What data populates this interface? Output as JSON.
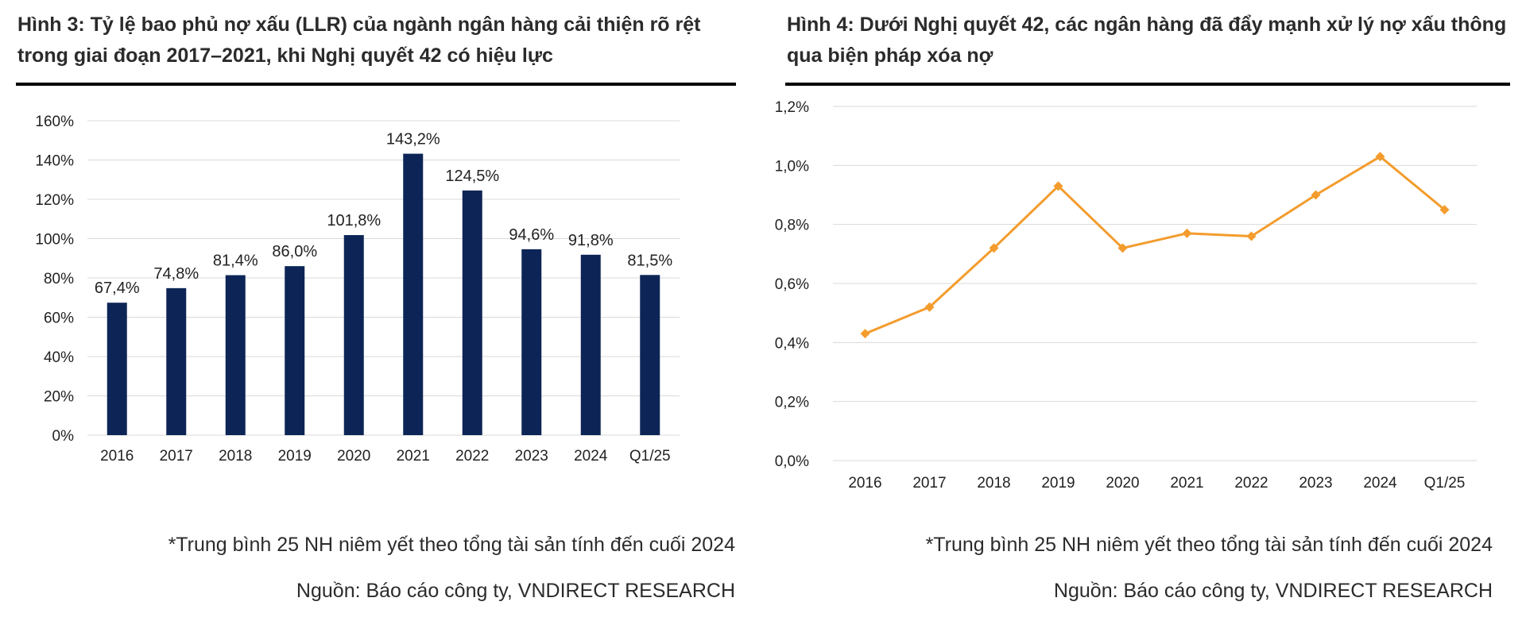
{
  "chart_data": [
    {
      "type": "bar",
      "title": "Hình 3: Tỷ lệ bao phủ nợ xấu (LLR) của ngành ngân hàng cải thiện rõ rệt trong giai đoạn 2017–2021, khi Nghị quyết 42 có hiệu lực",
      "categories": [
        "2016",
        "2017",
        "2018",
        "2019",
        "2020",
        "2021",
        "2022",
        "2023",
        "2024",
        "Q1/25"
      ],
      "values": [
        67.4,
        74.8,
        81.4,
        86.0,
        101.8,
        143.2,
        124.5,
        94.6,
        91.8,
        81.5
      ],
      "value_labels": [
        "67,4%",
        "74,8%",
        "81,4%",
        "86,0%",
        "101,8%",
        "143,2%",
        "124,5%",
        "94,6%",
        "91,8%",
        "81,5%"
      ],
      "ylim": [
        0,
        160
      ],
      "yticks": [
        0,
        20,
        40,
        60,
        80,
        100,
        120,
        140,
        160
      ],
      "ytick_labels": [
        "0%",
        "20%",
        "40%",
        "60%",
        "80%",
        "100%",
        "120%",
        "140%",
        "160%"
      ],
      "xlabel": "",
      "ylabel": "",
      "grid": true,
      "color": "#0d2556",
      "note": "*Trung bình 25 NH niêm yết theo tổng tài sản tính đến cuối 2024",
      "source": "Nguồn: Báo cáo công ty, VNDIRECT RESEARCH"
    },
    {
      "type": "line",
      "title": "Hình 4: Dưới Nghị quyết 42, các ngân hàng đã đẩy mạnh xử lý nợ xấu thông qua biện pháp xóa nợ",
      "categories": [
        "2016",
        "2017",
        "2018",
        "2019",
        "2020",
        "2021",
        "2022",
        "2023",
        "2024",
        "Q1/25"
      ],
      "values": [
        0.43,
        0.52,
        0.72,
        0.93,
        0.72,
        0.77,
        0.76,
        0.9,
        1.03,
        0.85
      ],
      "ylim": [
        0,
        1.2
      ],
      "yticks": [
        0,
        0.2,
        0.4,
        0.6,
        0.8,
        1.0,
        1.2
      ],
      "ytick_labels": [
        "0,0%",
        "0,2%",
        "0,4%",
        "0,6%",
        "0,8%",
        "1,0%",
        "1,2%"
      ],
      "xlabel": "",
      "ylabel": "",
      "grid": true,
      "color": "#f39c2d",
      "marker": "diamond",
      "note": "*Trung bình 25 NH niêm yết theo tổng tài sản tính đến cuối 2024",
      "source": "Nguồn: Báo cáo công ty, VNDIRECT RESEARCH"
    }
  ]
}
